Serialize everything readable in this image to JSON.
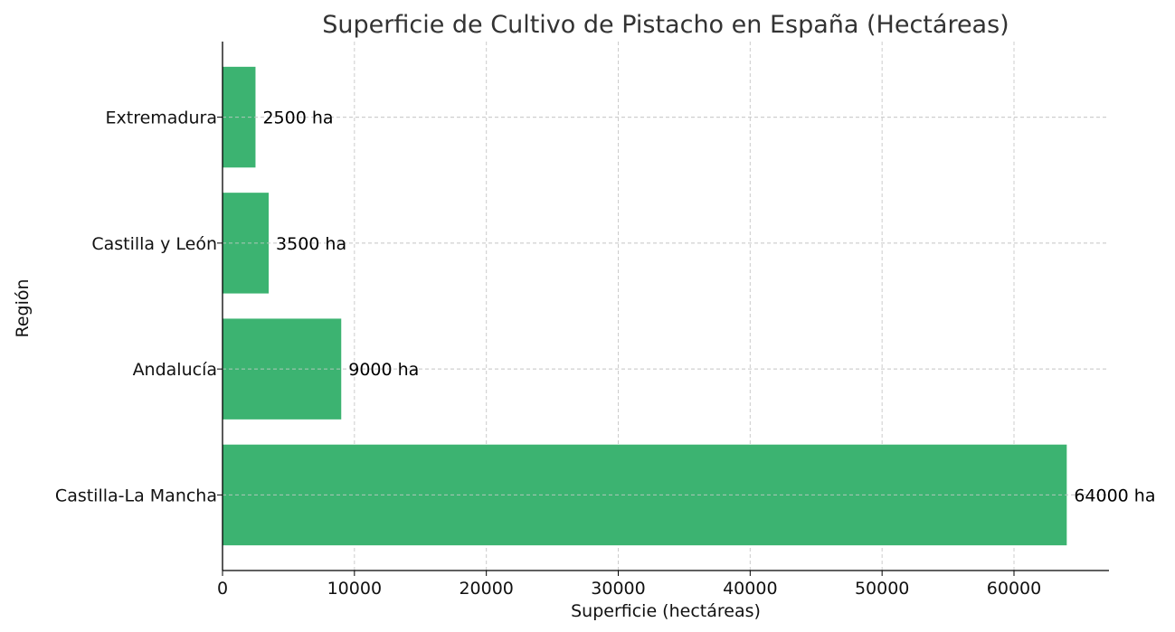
{
  "chart_data": {
    "type": "bar",
    "orientation": "horizontal",
    "title": "Superficie de Cultivo de Pistacho en España (Hectáreas)",
    "xlabel": "Superficie (hectáreas)",
    "ylabel": "Región",
    "categories": [
      "Castilla-La Mancha",
      "Andalucía",
      "Castilla y León",
      "Extremadura"
    ],
    "values": [
      64000,
      9000,
      3500,
      2500
    ],
    "data_labels": [
      "64000 ha",
      "9000 ha",
      "3500 ha",
      "2500 ha"
    ],
    "xlim": [
      0,
      67200
    ],
    "xticks": [
      0,
      10000,
      20000,
      30000,
      40000,
      50000,
      60000
    ],
    "xtick_labels": [
      "0",
      "10000",
      "20000",
      "30000",
      "40000",
      "50000",
      "60000"
    ],
    "grid": true,
    "bar_color": "#3CB371",
    "grid_color": "#cccccc",
    "title_color": "#333333"
  }
}
